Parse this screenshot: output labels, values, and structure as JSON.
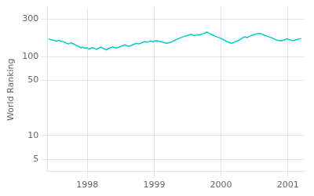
{
  "chart_data": {
    "type": "line",
    "ylabel": "World Ranking",
    "color": "#00CDCD",
    "log": "y",
    "grid": true,
    "xlim": [
      1997.4,
      2001.25
    ],
    "ylim": [
      3.5,
      420
    ],
    "xticks": [
      1998,
      1999,
      2000,
      2001
    ],
    "yticks": [
      5,
      10,
      50,
      100,
      300
    ],
    "x": [
      1997.42,
      1997.45,
      1997.48,
      1997.51,
      1997.54,
      1997.57,
      1997.6,
      1997.63,
      1997.66,
      1997.69,
      1997.72,
      1997.75,
      1997.78,
      1997.81,
      1997.84,
      1997.87,
      1997.9,
      1997.93,
      1997.96,
      1997.99,
      1998.02,
      1998.05,
      1998.08,
      1998.11,
      1998.14,
      1998.17,
      1998.2,
      1998.23,
      1998.26,
      1998.29,
      1998.32,
      1998.35,
      1998.38,
      1998.41,
      1998.44,
      1998.47,
      1998.5,
      1998.53,
      1998.56,
      1998.59,
      1998.62,
      1998.65,
      1998.68,
      1998.71,
      1998.74,
      1998.77,
      1998.8,
      1998.83,
      1998.86,
      1998.89,
      1998.92,
      1998.95,
      1998.98,
      1999.01,
      1999.04,
      1999.07,
      1999.1,
      1999.13,
      1999.16,
      1999.19,
      1999.22,
      1999.25,
      1999.28,
      1999.31,
      1999.34,
      1999.37,
      1999.4,
      1999.43,
      1999.46,
      1999.49,
      1999.52,
      1999.55,
      1999.58,
      1999.61,
      1999.64,
      1999.67,
      1999.7,
      1999.73,
      1999.76,
      1999.79,
      1999.82,
      1999.85,
      1999.88,
      1999.91,
      1999.94,
      1999.97,
      2000.0,
      2000.03,
      2000.06,
      2000.09,
      2000.12,
      2000.15,
      2000.18,
      2000.21,
      2000.24,
      2000.27,
      2000.3,
      2000.33,
      2000.36,
      2000.39,
      2000.42,
      2000.45,
      2000.48,
      2000.51,
      2000.54,
      2000.57,
      2000.6,
      2000.63,
      2000.66,
      2000.69,
      2000.72,
      2000.75,
      2000.78,
      2000.81,
      2000.84,
      2000.87,
      2000.9,
      2000.93,
      2000.96,
      2000.99,
      2001.02,
      2001.05,
      2001.08,
      2001.11,
      2001.14,
      2001.17,
      2001.2
    ],
    "values": [
      168,
      165,
      163,
      160,
      158,
      162,
      158,
      155,
      152,
      148,
      145,
      150,
      147,
      143,
      138,
      135,
      130,
      132,
      128,
      130,
      125,
      128,
      130,
      127,
      124,
      128,
      132,
      128,
      125,
      122,
      128,
      130,
      133,
      130,
      128,
      132,
      135,
      138,
      142,
      138,
      135,
      138,
      142,
      145,
      148,
      145,
      148,
      152,
      155,
      152,
      155,
      158,
      155,
      158,
      160,
      157,
      155,
      152,
      150,
      148,
      150,
      153,
      157,
      162,
      167,
      170,
      175,
      178,
      182,
      185,
      188,
      192,
      188,
      185,
      190,
      188,
      192,
      195,
      200,
      205,
      198,
      192,
      188,
      182,
      178,
      175,
      170,
      165,
      160,
      155,
      152,
      148,
      150,
      155,
      158,
      162,
      168,
      175,
      178,
      175,
      180,
      185,
      188,
      192,
      195,
      198,
      195,
      190,
      185,
      182,
      178,
      175,
      170,
      165,
      162,
      160,
      158,
      162,
      165,
      168,
      165,
      162,
      160,
      163,
      165,
      168,
      170
    ]
  }
}
